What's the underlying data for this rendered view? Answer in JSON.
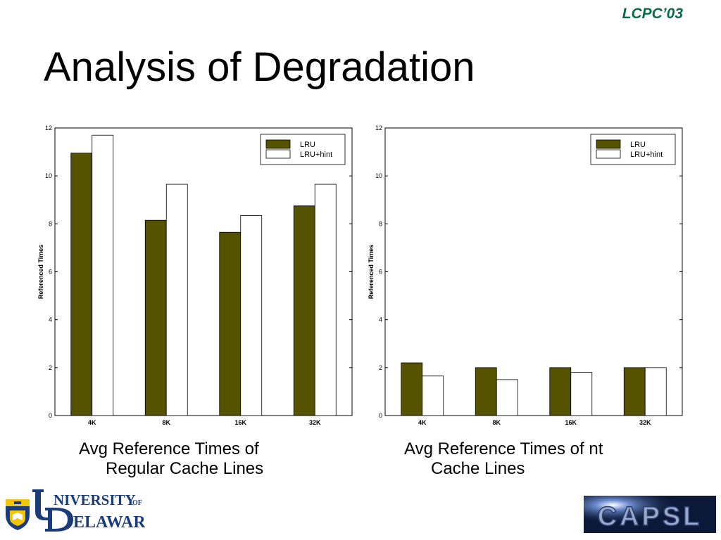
{
  "header": {
    "conference": "LCPC’03",
    "title": "Analysis of Degradation"
  },
  "chart_data": [
    {
      "type": "bar",
      "categories": [
        "4K",
        "8K",
        "16K",
        "32K"
      ],
      "series": [
        {
          "name": "LRU",
          "values": [
            10.95,
            8.15,
            7.65,
            8.75
          ]
        },
        {
          "name": "LRU+hint",
          "values": [
            11.7,
            9.65,
            8.35,
            9.65
          ]
        }
      ],
      "ylabel": "Referenced Times",
      "ylim": [
        0,
        12
      ],
      "yticks": [
        0,
        2,
        4,
        6,
        8,
        10,
        12
      ],
      "legend": "top-right",
      "colors": [
        "#555300",
        "#ffffff"
      ]
    },
    {
      "type": "bar",
      "categories": [
        "4K",
        "8K",
        "16K",
        "32K"
      ],
      "series": [
        {
          "name": "LRU",
          "values": [
            2.2,
            2.0,
            2.0,
            2.0
          ]
        },
        {
          "name": "LRU+hint",
          "values": [
            1.65,
            1.5,
            1.8,
            2.0
          ]
        }
      ],
      "ylabel": "Referenced Times",
      "ylim": [
        0,
        12
      ],
      "yticks": [
        0,
        2,
        4,
        6,
        8,
        10,
        12
      ],
      "legend": "top-right",
      "colors": [
        "#555300",
        "#ffffff"
      ]
    }
  ],
  "captions": {
    "left_line1": "Avg Reference Times of",
    "left_line2": "Regular Cache Lines",
    "right_line1": "Avg Reference Times of nt",
    "right_line2": "Cache Lines"
  },
  "logos": {
    "ud_line1": "NIVERSITY",
    "ud_of": "OF",
    "ud_line2": "ELAWARE",
    "capsl": "CAPSL"
  }
}
